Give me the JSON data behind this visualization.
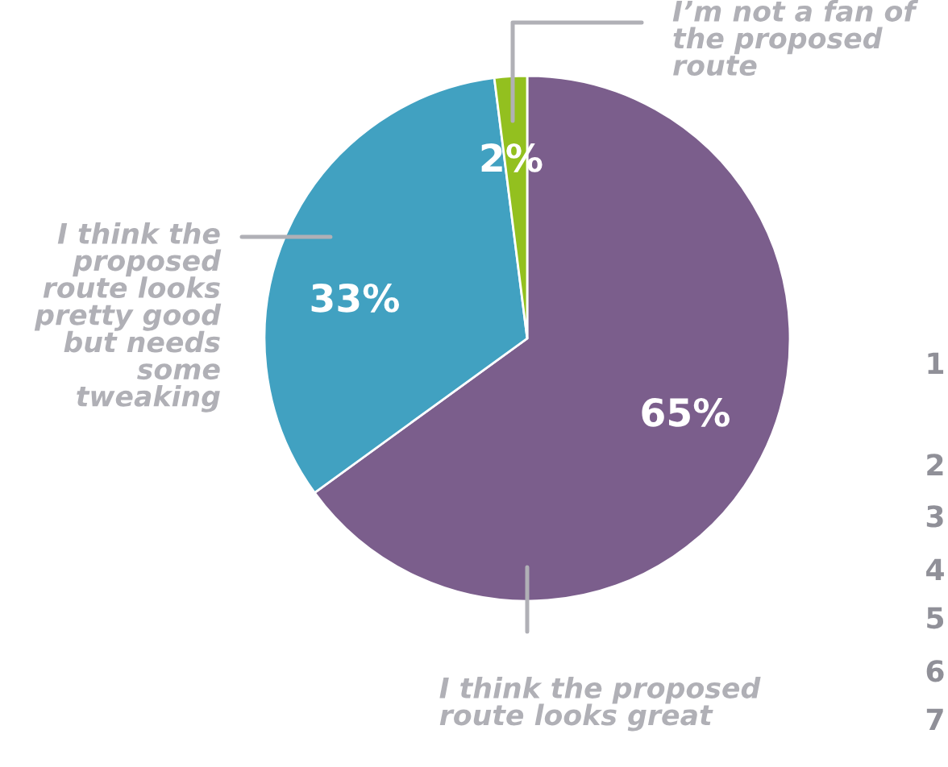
{
  "chart_data": {
    "type": "pie",
    "categories": [
      "I think the proposed\nroute looks great",
      "I think the\nproposed\nroute looks\npretty good\nbut needs\nsome\ntweaking",
      "I’m not a fan of\nthe proposed\nroute"
    ],
    "values": [
      65,
      33,
      2
    ],
    "colors": [
      "#7b5e8c",
      "#41a1c1",
      "#93c01f"
    ],
    "value_labels": [
      "65%",
      "33%",
      "2%"
    ],
    "annotations": [
      "1",
      "2",
      "3",
      "4",
      "5",
      "6",
      "7"
    ],
    "legend": false
  }
}
